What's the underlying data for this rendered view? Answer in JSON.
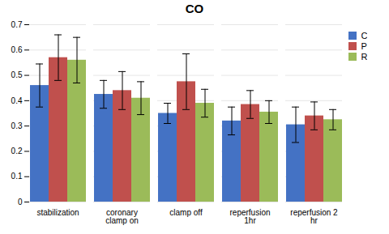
{
  "chart_data": {
    "type": "bar",
    "title": "CO",
    "categories": [
      "stabilization",
      "coronary\nclamp on",
      "clamp off",
      "reperfusion\n1hr",
      "reperfusion 2\nhr"
    ],
    "series": [
      {
        "name": "C",
        "color": "#4472C4",
        "values": [
          0.46,
          0.425,
          0.35,
          0.32,
          0.305
        ],
        "errors": [
          0.085,
          0.055,
          0.04,
          0.055,
          0.07
        ]
      },
      {
        "name": "P",
        "color": "#C0504D",
        "values": [
          0.57,
          0.44,
          0.475,
          0.385,
          0.34
        ],
        "errors": [
          0.09,
          0.075,
          0.11,
          0.055,
          0.055
        ]
      },
      {
        "name": "R",
        "color": "#9BBB59",
        "values": [
          0.56,
          0.41,
          0.39,
          0.355,
          0.325
        ],
        "errors": [
          0.09,
          0.065,
          0.055,
          0.045,
          0.04
        ]
      }
    ],
    "ylim": [
      0,
      0.7
    ],
    "yticks": [
      0,
      0.1,
      0.2,
      0.3,
      0.4,
      0.5,
      0.6,
      0.7
    ],
    "grid": true,
    "legend": "right"
  }
}
